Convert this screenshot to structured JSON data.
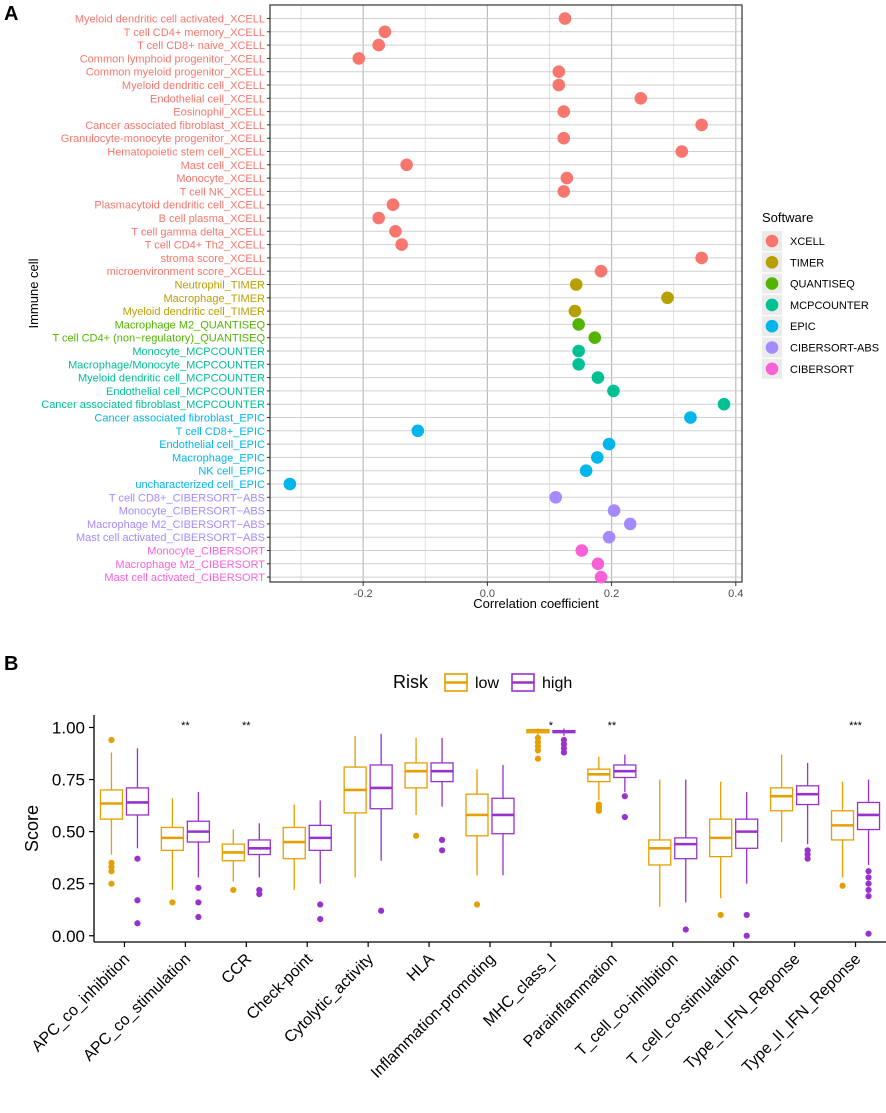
{
  "chart_data": [
    {
      "panel": "A",
      "type": "scatter",
      "xlabel": "Correlation coefficient",
      "ylabel": "Immune cell",
      "xlim": [
        -0.35,
        0.41
      ],
      "xticks": [
        "-0.2",
        "0.0",
        "0.2",
        "0.4"
      ],
      "xtick_values": [
        -0.2,
        0.0,
        0.2,
        0.4
      ],
      "legend_title": "Software",
      "legend": [
        {
          "name": "XCELL",
          "color": "#F8766D"
        },
        {
          "name": "TIMER",
          "color": "#B79F00"
        },
        {
          "name": "QUANTISEQ",
          "color": "#53B400"
        },
        {
          "name": "MCPCOUNTER",
          "color": "#00C094"
        },
        {
          "name": "EPIC",
          "color": "#00B6EB"
        },
        {
          "name": "CIBERSORT-ABS",
          "color": "#A58AFF"
        },
        {
          "name": "CIBERSORT",
          "color": "#FB61D7"
        }
      ],
      "points": [
        {
          "label": "Myeloid dendritic cell activated_XCELL",
          "value": 0.125,
          "group": "XCELL"
        },
        {
          "label": "T cell CD4+ memory_XCELL",
          "value": -0.165,
          "group": "XCELL"
        },
        {
          "label": "T cell CD8+ naive_XCELL",
          "value": -0.175,
          "group": "XCELL"
        },
        {
          "label": "Common lymphoid progenitor_XCELL",
          "value": -0.207,
          "group": "XCELL"
        },
        {
          "label": "Common myeloid progenitor_XCELL",
          "value": 0.115,
          "group": "XCELL"
        },
        {
          "label": "Myeloid dendritic cell_XCELL",
          "value": 0.115,
          "group": "XCELL"
        },
        {
          "label": "Endothelial cell_XCELL",
          "value": 0.247,
          "group": "XCELL"
        },
        {
          "label": "Eosinophil_XCELL",
          "value": 0.123,
          "group": "XCELL"
        },
        {
          "label": "Cancer associated fibroblast_XCELL",
          "value": 0.345,
          "group": "XCELL"
        },
        {
          "label": "Granulocyte-monocyte progenitor_XCELL",
          "value": 0.123,
          "group": "XCELL"
        },
        {
          "label": "Hematopoietic stem cell_XCELL",
          "value": 0.313,
          "group": "XCELL"
        },
        {
          "label": "Mast cell_XCELL",
          "value": -0.13,
          "group": "XCELL"
        },
        {
          "label": "Monocyte_XCELL",
          "value": 0.128,
          "group": "XCELL"
        },
        {
          "label": "T cell NK_XCELL",
          "value": 0.123,
          "group": "XCELL"
        },
        {
          "label": "Plasmacytoid dendritic cell_XCELL",
          "value": -0.152,
          "group": "XCELL"
        },
        {
          "label": "B cell plasma_XCELL",
          "value": -0.175,
          "group": "XCELL"
        },
        {
          "label": "T cell gamma delta_XCELL",
          "value": -0.148,
          "group": "XCELL"
        },
        {
          "label": "T cell CD4+ Th2_XCELL",
          "value": -0.138,
          "group": "XCELL"
        },
        {
          "label": "stroma score_XCELL",
          "value": 0.345,
          "group": "XCELL"
        },
        {
          "label": "microenvironment score_XCELL",
          "value": 0.183,
          "group": "XCELL"
        },
        {
          "label": "Neutrophil_TIMER",
          "value": 0.143,
          "group": "TIMER"
        },
        {
          "label": "Macrophage_TIMER",
          "value": 0.29,
          "group": "TIMER"
        },
        {
          "label": "Myeloid dendritic cell_TIMER",
          "value": 0.141,
          "group": "TIMER"
        },
        {
          "label": "Macrophage M2_QUANTISEQ",
          "value": 0.147,
          "group": "QUANTISEQ"
        },
        {
          "label": "T cell CD4+ (non−regulatory)_QUANTISEQ",
          "value": 0.173,
          "group": "QUANTISEQ"
        },
        {
          "label": "Monocyte_MCPCOUNTER",
          "value": 0.147,
          "group": "MCPCOUNTER"
        },
        {
          "label": "Macrophage/Monocyte_MCPCOUNTER",
          "value": 0.147,
          "group": "MCPCOUNTER"
        },
        {
          "label": "Myeloid dendritic cell_MCPCOUNTER",
          "value": 0.178,
          "group": "MCPCOUNTER"
        },
        {
          "label": "Endothelial cell_MCPCOUNTER",
          "value": 0.203,
          "group": "MCPCOUNTER"
        },
        {
          "label": "Cancer associated fibroblast_MCPCOUNTER",
          "value": 0.381,
          "group": "MCPCOUNTER"
        },
        {
          "label": "Cancer associated fibroblast_EPIC",
          "value": 0.327,
          "group": "EPIC"
        },
        {
          "label": "T cell CD8+_EPIC",
          "value": -0.112,
          "group": "EPIC"
        },
        {
          "label": "Endothelial cell_EPIC",
          "value": 0.196,
          "group": "EPIC"
        },
        {
          "label": "Macrophage_EPIC",
          "value": 0.177,
          "group": "EPIC"
        },
        {
          "label": "NK cell_EPIC",
          "value": 0.159,
          "group": "EPIC"
        },
        {
          "label": "uncharacterized cell_EPIC",
          "value": -0.318,
          "group": "EPIC"
        },
        {
          "label": "T cell CD8+_CIBERSORT−ABS",
          "value": 0.11,
          "group": "CIBERSORT-ABS"
        },
        {
          "label": "Monocyte_CIBERSORT−ABS",
          "value": 0.204,
          "group": "CIBERSORT-ABS"
        },
        {
          "label": "Macrophage M2_CIBERSORT−ABS",
          "value": 0.23,
          "group": "CIBERSORT-ABS"
        },
        {
          "label": "Mast cell activated_CIBERSORT−ABS",
          "value": 0.196,
          "group": "CIBERSORT-ABS"
        },
        {
          "label": "Monocyte_CIBERSORT",
          "value": 0.152,
          "group": "CIBERSORT"
        },
        {
          "label": "Macrophage M2_CIBERSORT",
          "value": 0.178,
          "group": "CIBERSORT"
        },
        {
          "label": "Mast cell activated_CIBERSORT",
          "value": 0.183,
          "group": "CIBERSORT"
        }
      ]
    },
    {
      "panel": "B",
      "type": "box",
      "ylabel": "Score",
      "ylim": [
        -0.03,
        1.06
      ],
      "yticks": [
        "0.00",
        "0.25",
        "0.50",
        "0.75",
        "1.00"
      ],
      "ytick_values": [
        0,
        0.25,
        0.5,
        0.75,
        1.0
      ],
      "legend_title": "Risk",
      "series": [
        {
          "name": "low",
          "color": "#E69F00"
        },
        {
          "name": "high",
          "color": "#9932CC"
        }
      ],
      "categories": [
        {
          "name": "APC_co_inhibition",
          "sig": "",
          "low": {
            "min": 0.39,
            "q1": 0.56,
            "med": 0.635,
            "q3": 0.7,
            "max": 0.88,
            "out": [
              0.94,
              0.35,
              0.33,
              0.31,
              0.25
            ]
          },
          "high": {
            "min": 0.42,
            "q1": 0.58,
            "med": 0.64,
            "q3": 0.71,
            "max": 0.9,
            "out": [
              0.37,
              0.17,
              0.06
            ]
          }
        },
        {
          "name": "APC_co_stimulation",
          "sig": "**",
          "low": {
            "min": 0.22,
            "q1": 0.41,
            "med": 0.47,
            "q3": 0.52,
            "max": 0.66,
            "out": [
              0.16
            ]
          },
          "high": {
            "min": 0.28,
            "q1": 0.45,
            "med": 0.5,
            "q3": 0.55,
            "max": 0.69,
            "out": [
              0.23,
              0.16,
              0.09
            ]
          }
        },
        {
          "name": "CCR",
          "sig": "**",
          "low": {
            "min": 0.26,
            "q1": 0.36,
            "med": 0.4,
            "q3": 0.44,
            "max": 0.51,
            "out": [
              0.22
            ]
          },
          "high": {
            "min": 0.28,
            "q1": 0.39,
            "med": 0.42,
            "q3": 0.46,
            "max": 0.54,
            "out": [
              0.22,
              0.2
            ]
          }
        },
        {
          "name": "Check-point",
          "sig": "",
          "low": {
            "min": 0.22,
            "q1": 0.37,
            "med": 0.45,
            "q3": 0.52,
            "max": 0.63,
            "out": []
          },
          "high": {
            "min": 0.25,
            "q1": 0.41,
            "med": 0.47,
            "q3": 0.53,
            "max": 0.65,
            "out": [
              0.15,
              0.08
            ]
          }
        },
        {
          "name": "Cytolytic_activity",
          "sig": "",
          "low": {
            "min": 0.28,
            "q1": 0.59,
            "med": 0.7,
            "q3": 0.81,
            "max": 0.96,
            "out": []
          },
          "high": {
            "min": 0.36,
            "q1": 0.61,
            "med": 0.71,
            "q3": 0.82,
            "max": 0.97,
            "out": [
              0.12
            ]
          }
        },
        {
          "name": "HLA",
          "sig": "",
          "low": {
            "min": 0.58,
            "q1": 0.71,
            "med": 0.79,
            "q3": 0.83,
            "max": 0.95,
            "out": [
              0.48
            ]
          },
          "high": {
            "min": 0.62,
            "q1": 0.74,
            "med": 0.79,
            "q3": 0.83,
            "max": 0.95,
            "out": [
              0.46,
              0.41
            ]
          }
        },
        {
          "name": "Inflammation-promoting",
          "sig": "",
          "low": {
            "min": 0.29,
            "q1": 0.48,
            "med": 0.58,
            "q3": 0.68,
            "max": 0.8,
            "out": [
              0.15
            ]
          },
          "high": {
            "min": 0.29,
            "q1": 0.49,
            "med": 0.58,
            "q3": 0.66,
            "max": 0.82,
            "out": []
          }
        },
        {
          "name": "MHC_class_I",
          "sig": "*",
          "low": {
            "min": 0.96,
            "q1": 0.975,
            "med": 0.985,
            "q3": 0.99,
            "max": 0.995,
            "out": [
              0.95,
              0.93,
              0.91,
              0.89,
              0.85
            ]
          },
          "high": {
            "min": 0.96,
            "q1": 0.975,
            "med": 0.98,
            "q3": 0.985,
            "max": 0.995,
            "out": [
              0.94,
              0.92,
              0.9,
              0.88
            ]
          }
        },
        {
          "name": "Parainflammation",
          "sig": "**",
          "low": {
            "min": 0.65,
            "q1": 0.74,
            "med": 0.775,
            "q3": 0.8,
            "max": 0.86,
            "out": [
              0.63,
              0.62,
              0.61,
              0.6
            ]
          },
          "high": {
            "min": 0.69,
            "q1": 0.76,
            "med": 0.79,
            "q3": 0.82,
            "max": 0.87,
            "out": [
              0.67,
              0.57
            ]
          }
        },
        {
          "name": "T_cell_co-inhibition",
          "sig": "",
          "low": {
            "min": 0.14,
            "q1": 0.34,
            "med": 0.42,
            "q3": 0.46,
            "max": 0.75,
            "out": []
          },
          "high": {
            "min": 0.16,
            "q1": 0.37,
            "med": 0.44,
            "q3": 0.47,
            "max": 0.75,
            "out": [
              0.03
            ]
          }
        },
        {
          "name": "T_cell_co-stimulation",
          "sig": "",
          "low": {
            "min": 0.18,
            "q1": 0.38,
            "med": 0.47,
            "q3": 0.56,
            "max": 0.74,
            "out": [
              0.1
            ]
          },
          "high": {
            "min": 0.25,
            "q1": 0.42,
            "med": 0.5,
            "q3": 0.56,
            "max": 0.69,
            "out": [
              0.1,
              0.0
            ]
          }
        },
        {
          "name": "Type_I_IFN_Reponse",
          "sig": "",
          "low": {
            "min": 0.45,
            "q1": 0.6,
            "med": 0.67,
            "q3": 0.71,
            "max": 0.87,
            "out": []
          },
          "high": {
            "min": 0.44,
            "q1": 0.63,
            "med": 0.68,
            "q3": 0.72,
            "max": 0.83,
            "out": [
              0.41,
              0.39,
              0.37
            ]
          }
        },
        {
          "name": "Type_II_IFN_Reponse",
          "sig": "***",
          "low": {
            "min": 0.28,
            "q1": 0.46,
            "med": 0.53,
            "q3": 0.6,
            "max": 0.74,
            "out": [
              0.24
            ]
          },
          "high": {
            "min": 0.34,
            "q1": 0.51,
            "med": 0.58,
            "q3": 0.64,
            "max": 0.75,
            "out": [
              0.31,
              0.28,
              0.25,
              0.22,
              0.19,
              0.01
            ]
          }
        }
      ]
    }
  ],
  "labels": {
    "panel_a": "A",
    "panel_b": "B"
  }
}
